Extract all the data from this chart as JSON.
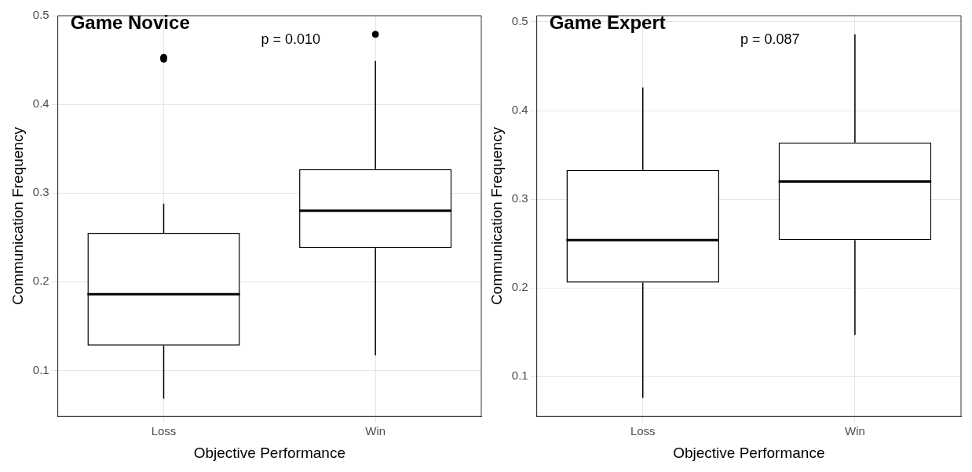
{
  "chart_data": [
    {
      "type": "box",
      "title": "Game Novice",
      "xlabel": "Objective Performance",
      "ylabel": "Communication Frequency",
      "categories": [
        "Loss",
        "Win"
      ],
      "boxes": [
        {
          "low": 0.068,
          "q1": 0.128,
          "median": 0.186,
          "q3": 0.255,
          "high": 0.288,
          "outliers": [
            0.453,
            0.451
          ]
        },
        {
          "low": 0.117,
          "q1": 0.238,
          "median": 0.28,
          "q3": 0.327,
          "high": 0.449,
          "outliers": [
            0.479
          ]
        }
      ],
      "ylim": [
        0.048,
        0.5
      ],
      "yticks": [
        0.1,
        0.2,
        0.3,
        0.4,
        0.5
      ],
      "grid": true,
      "annotations": [
        "p = 0.010"
      ]
    },
    {
      "type": "box",
      "title": "Game Expert",
      "xlabel": "Objective Performance",
      "ylabel": "Communication Frequency",
      "categories": [
        "Loss",
        "Win"
      ],
      "boxes": [
        {
          "low": 0.076,
          "q1": 0.206,
          "median": 0.254,
          "q3": 0.333,
          "high": 0.426
        },
        {
          "low": 0.147,
          "q1": 0.254,
          "median": 0.32,
          "q3": 0.364,
          "high": 0.486
        }
      ],
      "ylim": [
        0.055,
        0.507
      ],
      "yticks": [
        0.1,
        0.2,
        0.3,
        0.4,
        0.5
      ],
      "grid": true,
      "annotations": [
        "p = 0.087"
      ]
    }
  ]
}
